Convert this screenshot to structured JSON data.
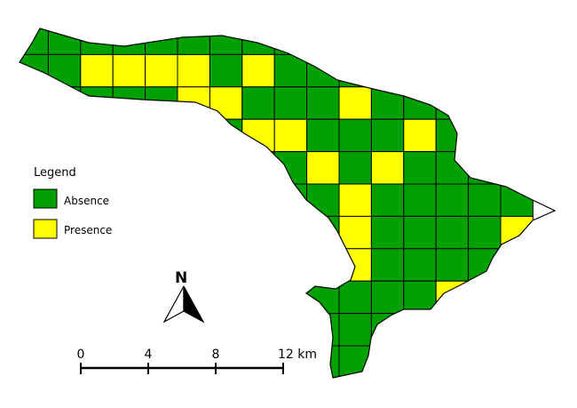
{
  "legend": {
    "title": "Legend",
    "items": [
      {
        "label": "Absence",
        "color": "#00a000"
      },
      {
        "label": "Presence",
        "color": "#ffff00"
      }
    ]
  },
  "north_arrow": {
    "label": "N"
  },
  "scale_bar": {
    "ticks": [
      "0",
      "4",
      "8",
      "12 km"
    ]
  },
  "grid": {
    "cell_km": 2,
    "colors": {
      "absence": "#00a000",
      "presence": "#ffff00",
      "outline": "#000000"
    },
    "rows": [
      "AA..........",
      "APPPPAPAA...",
      "AAAAAPPAAAPA",
      "......PPAAAP",
      "........PAPA",
      "........AAPA",
      "........PAAA",
      "........PAAA",
      "........APAA",
      "........AAPA",
      "........AAAP",
      "........AAAA"
    ]
  }
}
